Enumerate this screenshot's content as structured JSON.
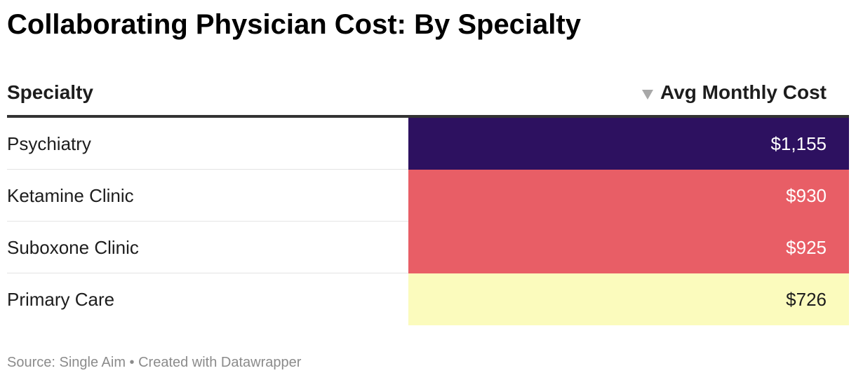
{
  "title": "Collaborating Physician Cost: By Specialty",
  "table": {
    "headers": {
      "specialty": "Specialty",
      "cost": "Avg Monthly Cost",
      "sort_icon": "sort-descending-triangle-icon"
    }
  },
  "chart_data": {
    "type": "table",
    "title": "Collaborating Physician Cost: By Specialty",
    "columns": [
      "Specialty",
      "Avg Monthly Cost"
    ],
    "sorted_by": "Avg Monthly Cost",
    "sort_order": "descending",
    "rows": [
      {
        "specialty": "Psychiatry",
        "value": 1155,
        "label": "$1,155",
        "color": "#2d1160",
        "text_color": "#ffffff"
      },
      {
        "specialty": "Ketamine Clinic",
        "value": 930,
        "label": "$930",
        "color": "#e85e66",
        "text_color": "#ffffff"
      },
      {
        "specialty": "Suboxone Clinic",
        "value": 925,
        "label": "$925",
        "color": "#e85e66",
        "text_color": "#ffffff"
      },
      {
        "specialty": "Primary Care",
        "value": 726,
        "label": "$726",
        "color": "#fbfbbd",
        "text_color": "#1d1d1d"
      }
    ]
  },
  "footer": {
    "source": "Source: Single Aim • Created with Datawrapper"
  }
}
